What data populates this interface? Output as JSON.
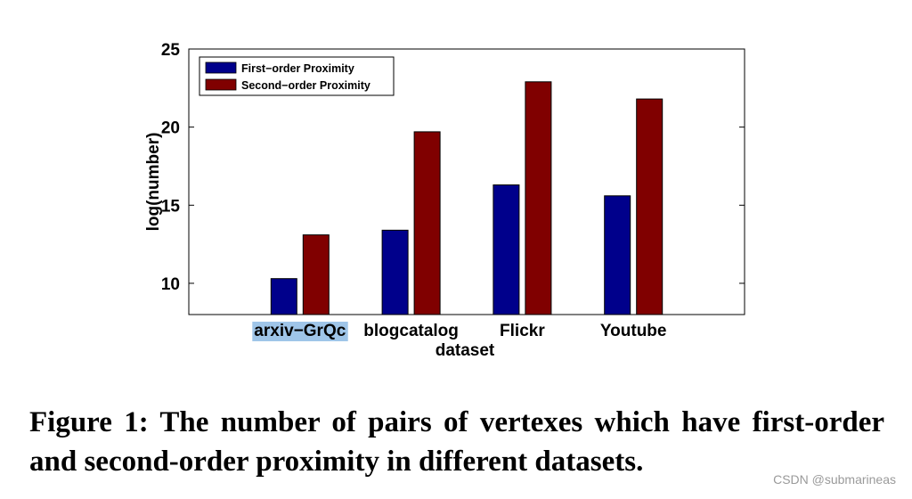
{
  "chart_data": {
    "type": "bar",
    "categories": [
      "arxiv−GrQc",
      "blogcatalog",
      "Flickr",
      "Youtube"
    ],
    "series": [
      {
        "name": "First−order Proximity",
        "color": "#00008b",
        "values": [
          10.3,
          13.4,
          16.3,
          15.6
        ]
      },
      {
        "name": "Second−order Proximity",
        "color": "#800000",
        "values": [
          13.1,
          19.7,
          22.9,
          21.8
        ]
      }
    ],
    "title": "",
    "xlabel": "dataset",
    "ylabel": "log(number)",
    "ylim": [
      8,
      25
    ],
    "yticks": [
      "10",
      "15",
      "20",
      "25"
    ],
    "xlim": [
      0,
      5
    ],
    "highlighted_category": "arxiv−GrQc",
    "highlight_color": "#9fc5e8",
    "legend_position": "top-left"
  },
  "caption": "Figure 1:  The number of pairs of vertexes which have first-order and second-order proximity in different datasets.",
  "watermark": "CSDN @submarineas"
}
